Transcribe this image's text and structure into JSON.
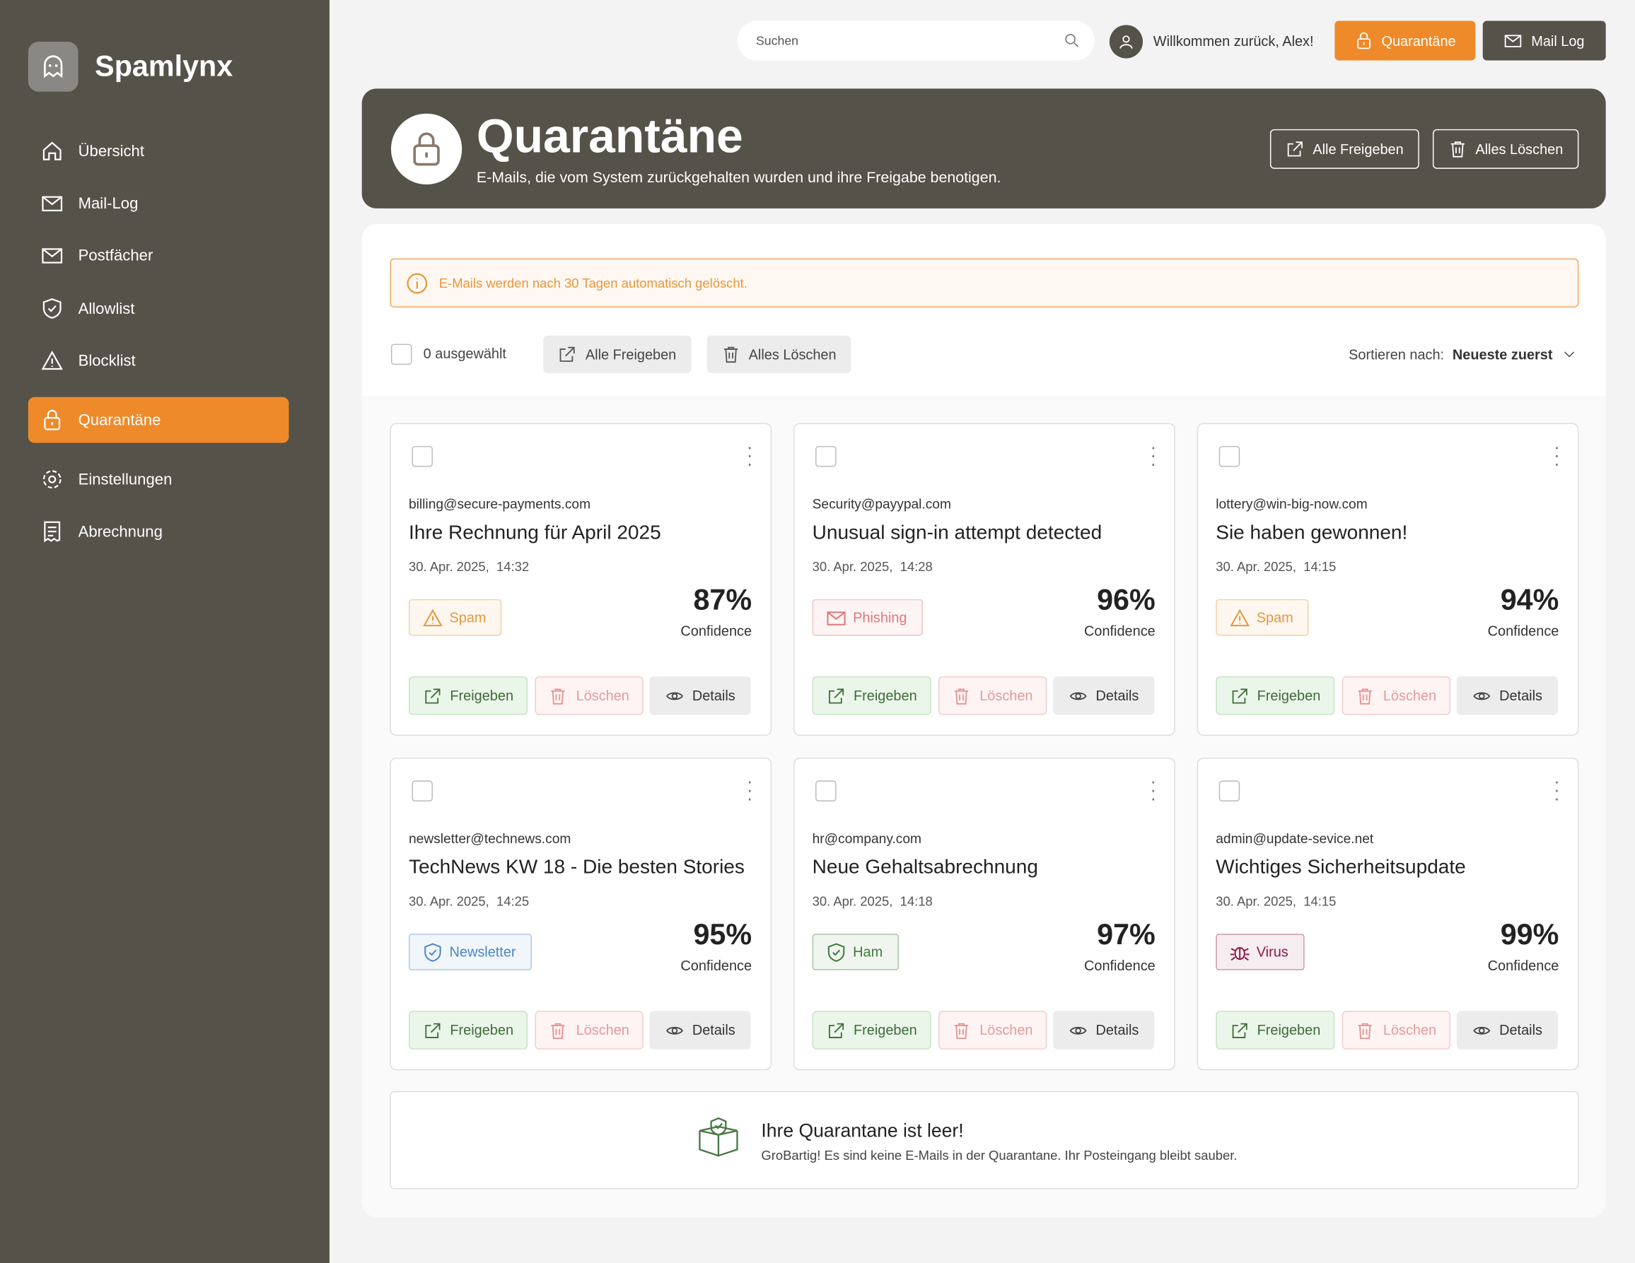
{
  "sidebar": {
    "brand": "Spamlynx",
    "nav": [
      {
        "label": "Übersicht",
        "icon": "home"
      },
      {
        "label": "Mail-Log",
        "icon": "mail"
      },
      {
        "label": "Postfächer",
        "icon": "mail"
      },
      {
        "label": "Allowlist",
        "icon": "shield"
      },
      {
        "label": "Blocklist",
        "icon": "warn"
      },
      {
        "label": "Quarantäne",
        "icon": "lock",
        "active": true
      },
      {
        "label": "Einstellungen",
        "icon": "gear"
      },
      {
        "label": "Abrechnung",
        "icon": "receipt"
      }
    ]
  },
  "topbar": {
    "search_placeholder": "Suchen",
    "welcome": "Willkommen zurück, Alex!",
    "buttons": [
      "Quarantäne",
      "Mail Log"
    ]
  },
  "header": {
    "title": "Quarantäne",
    "subtitle": "E-Mails, die vom System zurückgehalten wurden und ihre Freigabe benotigen.",
    "buttons": [
      "Alle Freigeben",
      "Alles Löschen"
    ]
  },
  "notice": "E-Mails werden nach 30 Tagen automatisch gelöscht.",
  "toolbar": {
    "selected": "0 ausgewählt",
    "buttons": [
      "Alle Freigeben",
      "Alles Löschen"
    ],
    "sort_label": "Sortieren nach:",
    "sort_value": "Neueste zuerst"
  },
  "cards": [
    {
      "sender": "billing@secure-payments.com",
      "subject": "Ihre Rechnung für April 2025",
      "date": "30. Apr. 2025,  14:32",
      "badge": {
        "label": "Spam",
        "color": "#e8963a"
      },
      "confidence": "87%",
      "confidence_label": "Confidence",
      "actions": [
        "Freigeben",
        "Löschen",
        "Details"
      ]
    },
    {
      "sender": "Security@payypal.com",
      "subject": "Unusual sign-in attempt detected",
      "date": "30. Apr. 2025,  14:28",
      "badge": {
        "label": "Phishing",
        "color": "#e07878"
      },
      "confidence": "96%",
      "confidence_label": "Confidence",
      "actions": [
        "Freigeben",
        "Löschen",
        "Details"
      ]
    },
    {
      "sender": "lottery@win-big-now.com",
      "subject": "Sie haben gewonnen!",
      "date": "30. Apr. 2025,  14:15",
      "badge": {
        "label": "Spam",
        "color": "#e8963a"
      },
      "confidence": "94%",
      "confidence_label": "Confidence",
      "actions": [
        "Freigeben",
        "Löschen",
        "Details"
      ]
    },
    {
      "sender": "newsletter@technews.com",
      "subject": "TechNews KW 18 - Die besten Stories",
      "date": "30. Apr. 2025,  14:25",
      "badge": {
        "label": "Newsletter",
        "color": "#4a86c9"
      },
      "confidence": "95%",
      "confidence_label": "Confidence",
      "actions": [
        "Freigeben",
        "Löschen",
        "Details"
      ]
    },
    {
      "sender": "hr@company.com",
      "subject": "Neue Gehaltsabrechnung",
      "date": "30. Apr. 2025,  14:18",
      "badge": {
        "label": "Ham",
        "color": "#3f7a3a"
      },
      "confidence": "97%",
      "confidence_label": "Confidence",
      "actions": [
        "Freigeben",
        "Löschen",
        "Details"
      ]
    },
    {
      "sender": "admin@update-sevice.net",
      "subject": "Wichtiges Sicherheitsupdate",
      "date": "30. Apr. 2025,  14:15",
      "badge": {
        "label": "Virus",
        "color": "#8a1a4a"
      },
      "confidence": "99%",
      "confidence_label": "Confidence",
      "actions": [
        "Freigeben",
        "Löschen",
        "Details"
      ]
    }
  ],
  "empty_state": {
    "title": "Ihre Quarantane ist leer!",
    "text": "GroBartig! Es sind keine E-Mails in der Quarantane. Ihr Posteingang bleibt sauber."
  }
}
